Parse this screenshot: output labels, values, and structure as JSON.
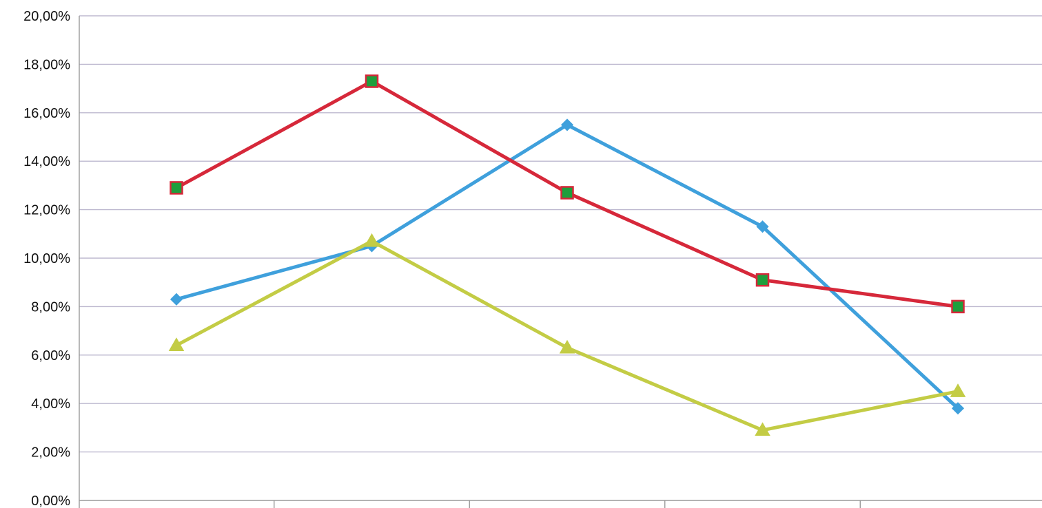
{
  "chart_data": {
    "type": "line",
    "title": "",
    "xlabel": "",
    "ylabel": "",
    "ylim": [
      0,
      20
    ],
    "y_ticks": [
      {
        "value": 0,
        "label": "0,00%"
      },
      {
        "value": 2,
        "label": "2,00%"
      },
      {
        "value": 4,
        "label": "4,00%"
      },
      {
        "value": 6,
        "label": "6,00%"
      },
      {
        "value": 8,
        "label": "8,00%"
      },
      {
        "value": 10,
        "label": "10,00%"
      },
      {
        "value": 12,
        "label": "12,00%"
      },
      {
        "value": 14,
        "label": "14,00%"
      },
      {
        "value": 16,
        "label": "16,00%"
      },
      {
        "value": 18,
        "label": "18,00%"
      },
      {
        "value": 20,
        "label": "20,00%"
      }
    ],
    "categories": [
      "",
      "",
      "",
      "",
      ""
    ],
    "grid": "horizontal",
    "legend": "none",
    "series": [
      {
        "color": "#3fa0dc",
        "marker": "diamond",
        "marker_fill": "#3fa0dc",
        "marker_stroke": "#3fa0dc",
        "values": [
          8.3,
          10.5,
          15.5,
          11.3,
          3.8
        ]
      },
      {
        "color": "#d6283a",
        "marker": "square",
        "marker_fill": "#1e9e3c",
        "marker_stroke": "#d6283a",
        "values": [
          12.9,
          17.3,
          12.7,
          9.1,
          8.0
        ]
      },
      {
        "color": "#c3cc45",
        "marker": "triangle",
        "marker_fill": "#c3cc45",
        "marker_stroke": "#c3cc45",
        "values": [
          6.4,
          10.7,
          6.3,
          2.9,
          4.5
        ]
      }
    ]
  }
}
